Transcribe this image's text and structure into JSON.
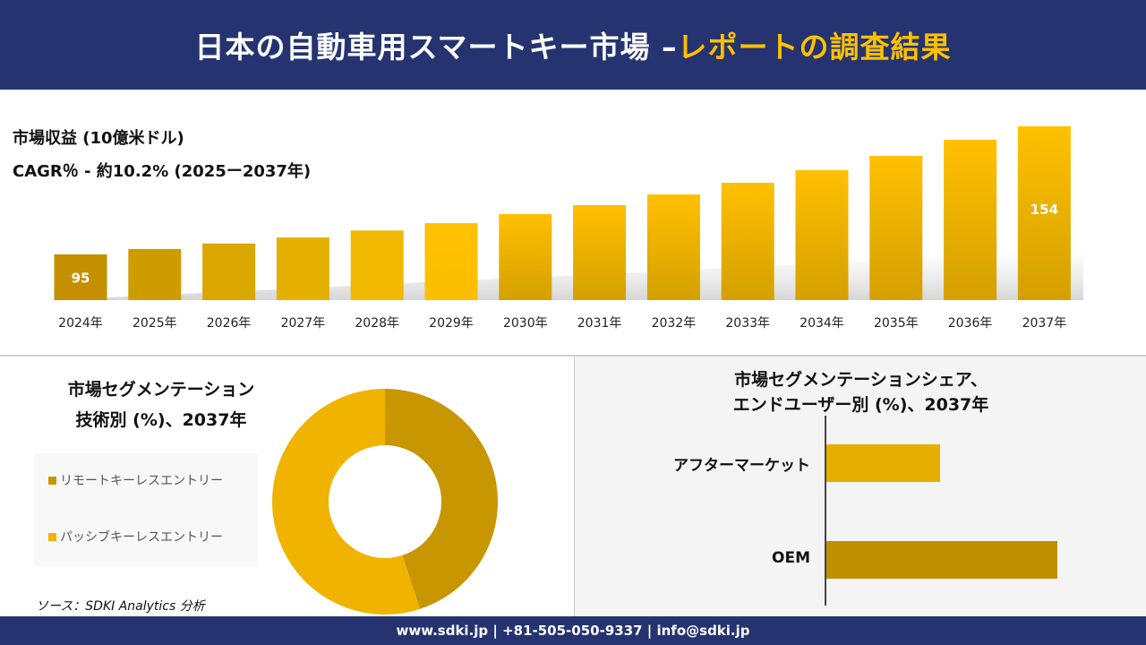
{
  "header": {
    "title_main": "日本の自動車用スマートキー市場 –",
    "title_accent": "レポートの調査結果"
  },
  "revenue": {
    "label": "市場収益 (10億米ドル)",
    "cagr": "CAGR％ - 約10.2% (2025ー2037年)"
  },
  "chart_data": [
    {
      "type": "bar",
      "categories": [
        "2024年",
        "2025年",
        "2026年",
        "2027年",
        "2028年",
        "2029年",
        "2030年",
        "2031年",
        "2032年",
        "2033年",
        "2034年",
        "2035年",
        "2036年",
        "2037年"
      ],
      "values": [
        95,
        97.5,
        100,
        102.8,
        106,
        109.4,
        113.6,
        117.7,
        122.6,
        128,
        133.8,
        140.4,
        147.8,
        154
      ],
      "data_labels": {
        "0": "95",
        "13": "154"
      },
      "ylabel": "市場収益 (10億米ドル)",
      "colors": {
        "dark": "#c49000",
        "bright": "#ffc000"
      }
    },
    {
      "type": "pie",
      "title": "市場セグメンテーション 技術別 (%)、2037年",
      "donut": true,
      "categories": [
        "リモートキーレスエントリー",
        "パッシブキーレスエントリー"
      ],
      "values": [
        45,
        55
      ],
      "colors": [
        "#c89600",
        "#f0b400"
      ],
      "legend": "left"
    },
    {
      "type": "bar",
      "orientation": "horizontal",
      "title": "市場セグメンテーションシェア、エンドユーザー別 (%)、2037年",
      "categories": [
        "アフターマーケット",
        "OEM"
      ],
      "values": [
        33,
        67
      ],
      "colors": [
        "#e6ae00",
        "#c09000"
      ]
    }
  ],
  "bl": {
    "title1": "市場セグメンテーション",
    "title2": "技術別 (%)、2037年"
  },
  "br": {
    "title1": "市場セグメンテーションシェア、",
    "title2": "エンドユーザー別 (%)、2037年"
  },
  "source": "ソース：SDKI Analytics 分析",
  "footer": "www.sdki.jp | +81-505-050-9337 | info@sdki.jp"
}
